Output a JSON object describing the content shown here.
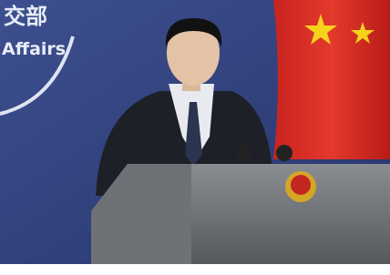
{
  "backdrop": {
    "chinese_text": "交部",
    "english_text": "Affairs"
  }
}
